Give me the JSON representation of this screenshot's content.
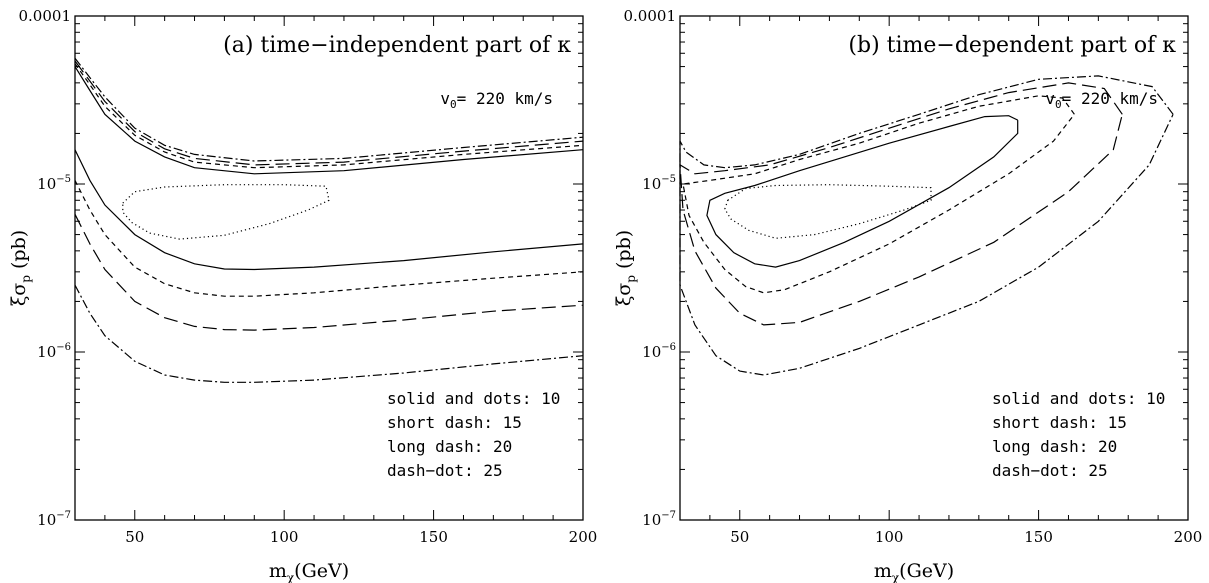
{
  "chart_data": [
    {
      "type": "line",
      "title": "(a) time−independent part of κ",
      "annotation": "v0= 220 km/s",
      "annotation_main": "v",
      "annotation_sub": "0",
      "annotation_rest": "= 220 km/s",
      "xlabel": "mχ(GeV)",
      "xlabel_main": "m",
      "xlabel_sub": "χ",
      "xlabel_rest": "(GeV)",
      "ylabel": "ξσp (pb)",
      "ylabel_main": "ξσ",
      "ylabel_sub": "p",
      "ylabel_rest": " (pb)",
      "xlim": [
        30,
        200
      ],
      "ylim": [
        1e-07,
        0.0001
      ],
      "yscale": "log",
      "x_ticks": [
        50,
        100,
        150,
        200
      ],
      "x_tick_labels": [
        "50",
        "100",
        "150",
        "200"
      ],
      "y_tick_labels": [
        {
          "value": 0.0001,
          "label": "0.0001"
        },
        {
          "value": 1e-05,
          "base": "10",
          "exp": "−5"
        },
        {
          "value": 1e-06,
          "base": "10",
          "exp": "−6"
        },
        {
          "value": 1e-07,
          "base": "10",
          "exp": "−7"
        }
      ],
      "legend_lines": [
        "solid and dots: 10",
        "short dash: 15",
        "long dash: 20",
        "dash−dot: 25"
      ],
      "legend_position": "bottom-right",
      "series": [
        {
          "style": "solid",
          "points": [
            [
              30,
              5e-05
            ],
            [
              35,
              3.6e-05
            ],
            [
              40,
              2.6e-05
            ],
            [
              50,
              1.8e-05
            ],
            [
              60,
              1.45e-05
            ],
            [
              70,
              1.25e-05
            ],
            [
              90,
              1.15e-05
            ],
            [
              120,
              1.2e-05
            ],
            [
              160,
              1.4e-05
            ],
            [
              200,
              1.6e-05
            ]
          ]
        },
        {
          "style": "short-dash",
          "points": [
            [
              30,
              5.2e-05
            ],
            [
              35,
              3.9e-05
            ],
            [
              40,
              2.9e-05
            ],
            [
              50,
              1.95e-05
            ],
            [
              60,
              1.55e-05
            ],
            [
              70,
              1.35e-05
            ],
            [
              90,
              1.25e-05
            ],
            [
              120,
              1.3e-05
            ],
            [
              160,
              1.5e-05
            ],
            [
              200,
              1.7e-05
            ]
          ]
        },
        {
          "style": "long-dash",
          "points": [
            [
              30,
              5.4e-05
            ],
            [
              35,
              4.1e-05
            ],
            [
              40,
              3.1e-05
            ],
            [
              50,
              2.05e-05
            ],
            [
              60,
              1.62e-05
            ],
            [
              70,
              1.42e-05
            ],
            [
              90,
              1.3e-05
            ],
            [
              120,
              1.35e-05
            ],
            [
              160,
              1.57e-05
            ],
            [
              200,
              1.8e-05
            ]
          ]
        },
        {
          "style": "dash-dot",
          "points": [
            [
              30,
              5.6e-05
            ],
            [
              35,
              4.3e-05
            ],
            [
              40,
              3.3e-05
            ],
            [
              50,
              2.15e-05
            ],
            [
              60,
              1.7e-05
            ],
            [
              70,
              1.5e-05
            ],
            [
              90,
              1.37e-05
            ],
            [
              120,
              1.42e-05
            ],
            [
              160,
              1.65e-05
            ],
            [
              200,
              1.9e-05
            ]
          ]
        },
        {
          "style": "solid",
          "points": [
            [
              30,
              1.6e-05
            ],
            [
              35,
              1.05e-05
            ],
            [
              40,
              7.5e-06
            ],
            [
              50,
              5e-06
            ],
            [
              60,
              3.9e-06
            ],
            [
              70,
              3.35e-06
            ],
            [
              80,
              3.12e-06
            ],
            [
              90,
              3.1e-06
            ],
            [
              110,
              3.2e-06
            ],
            [
              140,
              3.5e-06
            ],
            [
              170,
              3.95e-06
            ],
            [
              200,
              4.4e-06
            ]
          ]
        },
        {
          "style": "short-dash",
          "points": [
            [
              30,
              1.05e-05
            ],
            [
              35,
              7e-06
            ],
            [
              40,
              5e-06
            ],
            [
              50,
              3.2e-06
            ],
            [
              60,
              2.55e-06
            ],
            [
              70,
              2.25e-06
            ],
            [
              80,
              2.15e-06
            ],
            [
              90,
              2.15e-06
            ],
            [
              110,
              2.25e-06
            ],
            [
              140,
              2.5e-06
            ],
            [
              170,
              2.75e-06
            ],
            [
              200,
              3e-06
            ]
          ]
        },
        {
          "style": "long-dash",
          "points": [
            [
              30,
              6.6e-06
            ],
            [
              35,
              4.4e-06
            ],
            [
              40,
              3.1e-06
            ],
            [
              50,
              2e-06
            ],
            [
              60,
              1.6e-06
            ],
            [
              70,
              1.42e-06
            ],
            [
              80,
              1.36e-06
            ],
            [
              90,
              1.35e-06
            ],
            [
              110,
              1.4e-06
            ],
            [
              140,
              1.55e-06
            ],
            [
              170,
              1.75e-06
            ],
            [
              200,
              1.9e-06
            ]
          ]
        },
        {
          "style": "dash-dot",
          "points": [
            [
              30,
              2.5e-06
            ],
            [
              35,
              1.7e-06
            ],
            [
              40,
              1.25e-06
            ],
            [
              50,
              8.8e-07
            ],
            [
              60,
              7.3e-07
            ],
            [
              70,
              6.8e-07
            ],
            [
              80,
              6.6e-07
            ],
            [
              90,
              6.6e-07
            ],
            [
              110,
              6.8e-07
            ],
            [
              140,
              7.5e-07
            ],
            [
              170,
              8.5e-07
            ],
            [
              200,
              9.5e-07
            ]
          ]
        },
        {
          "style": "dotted",
          "closed": true,
          "points": [
            [
              46,
              7.7e-06
            ],
            [
              50,
              9e-06
            ],
            [
              60,
              9.6e-06
            ],
            [
              80,
              9.9e-06
            ],
            [
              100,
              9.9e-06
            ],
            [
              114,
              9.7e-06
            ],
            [
              115,
              8e-06
            ],
            [
              108,
              7e-06
            ],
            [
              95,
              5.8e-06
            ],
            [
              80,
              4.95e-06
            ],
            [
              65,
              4.7e-06
            ],
            [
              55,
              5.1e-06
            ],
            [
              49,
              5.9e-06
            ],
            [
              46,
              6.8e-06
            ]
          ]
        }
      ]
    },
    {
      "type": "line",
      "title": "(b) time−dependent part of κ",
      "annotation": "v0= 220 km/s",
      "annotation_main": "v",
      "annotation_sub": "0",
      "annotation_rest": "= 220 km/s",
      "xlabel": "mχ(GeV)",
      "xlabel_main": "m",
      "xlabel_sub": "χ",
      "xlabel_rest": "(GeV)",
      "ylabel": "ξσp (pb)",
      "ylabel_main": "ξσ",
      "ylabel_sub": "p",
      "ylabel_rest": " (pb)",
      "xlim": [
        30,
        200
      ],
      "ylim": [
        1e-07,
        0.0001
      ],
      "yscale": "log",
      "x_ticks": [
        50,
        100,
        150,
        200
      ],
      "x_tick_labels": [
        "50",
        "100",
        "150",
        "200"
      ],
      "y_tick_labels": [
        {
          "value": 0.0001,
          "label": "0.0001"
        },
        {
          "value": 1e-05,
          "base": "10",
          "exp": "−5"
        },
        {
          "value": 1e-06,
          "base": "10",
          "exp": "−6"
        },
        {
          "value": 1e-07,
          "base": "10",
          "exp": "−7"
        }
      ],
      "legend_lines": [
        "solid and dots: 10",
        "short dash: 15",
        "long dash: 20",
        "dash−dot: 25"
      ],
      "legend_position": "bottom-right",
      "series": [
        {
          "style": "solid",
          "points": [
            [
              143,
              2.4e-05
            ],
            [
              140,
              2.55e-05
            ],
            [
              132,
              2.52e-05
            ],
            [
              120,
              2.2e-05
            ],
            [
              100,
              1.75e-05
            ],
            [
              85,
              1.45e-05
            ],
            [
              70,
              1.2e-05
            ],
            [
              55,
              9.8e-06
            ],
            [
              45,
              8.8e-06
            ],
            [
              40,
              8e-06
            ],
            [
              39,
              6.5e-06
            ],
            [
              42,
              5e-06
            ],
            [
              48,
              3.9e-06
            ],
            [
              55,
              3.35e-06
            ],
            [
              62,
              3.2e-06
            ],
            [
              70,
              3.5e-06
            ],
            [
              85,
              4.5e-06
            ],
            [
              100,
              6e-06
            ],
            [
              120,
              9.5e-06
            ],
            [
              135,
              1.45e-05
            ],
            [
              143,
              2e-05
            ],
            [
              143,
              2.4e-05
            ]
          ]
        },
        {
          "style": "short-dash",
          "points": [
            [
              162,
              2.6e-05
            ],
            [
              158,
              3.25e-05
            ],
            [
              150,
              3.35e-05
            ],
            [
              130,
              2.9e-05
            ],
            [
              110,
              2.3e-05
            ],
            [
              90,
              1.75e-05
            ],
            [
              70,
              1.4e-05
            ],
            [
              55,
              1.15e-05
            ],
            [
              40,
              1.05e-05
            ],
            [
              31,
              1e-05
            ],
            [
              33,
              6.5e-06
            ],
            [
              38,
              4.5e-06
            ],
            [
              45,
              3.1e-06
            ],
            [
              52,
              2.45e-06
            ],
            [
              58,
              2.25e-06
            ],
            [
              65,
              2.35e-06
            ],
            [
              80,
              3e-06
            ],
            [
              100,
              4.4e-06
            ],
            [
              120,
              7e-06
            ],
            [
              140,
              1.15e-05
            ],
            [
              155,
              1.8e-05
            ],
            [
              162,
              2.6e-05
            ]
          ]
        },
        {
          "style": "long-dash",
          "points": [
            [
              178,
              2.6e-05
            ],
            [
              172,
              3.7e-05
            ],
            [
              160,
              4e-05
            ],
            [
              140,
              3.5e-05
            ],
            [
              120,
              2.8e-05
            ],
            [
              100,
              2.15e-05
            ],
            [
              80,
              1.65e-05
            ],
            [
              60,
              1.3e-05
            ],
            [
              45,
              1.2e-05
            ],
            [
              35,
              1.15e-05
            ],
            [
              30,
              1.3e-05
            ],
            [
              31,
              7e-06
            ],
            [
              35,
              4e-06
            ],
            [
              42,
              2.4e-06
            ],
            [
              50,
              1.7e-06
            ],
            [
              58,
              1.45e-06
            ],
            [
              70,
              1.5e-06
            ],
            [
              90,
              2e-06
            ],
            [
              110,
              2.8e-06
            ],
            [
              135,
              4.5e-06
            ],
            [
              160,
              9e-06
            ],
            [
              175,
              1.6e-05
            ],
            [
              178,
              2.6e-05
            ]
          ]
        },
        {
          "style": "dash-dot",
          "points": [
            [
              195,
              2.6e-05
            ],
            [
              188,
              3.8e-05
            ],
            [
              170,
              4.4e-05
            ],
            [
              150,
              4.2e-05
            ],
            [
              130,
              3.4e-05
            ],
            [
              110,
              2.6e-05
            ],
            [
              90,
              2e-05
            ],
            [
              70,
              1.5e-05
            ],
            [
              55,
              1.3e-05
            ],
            [
              45,
              1.25e-05
            ],
            [
              38,
              1.3e-05
            ],
            [
              32,
              1.55e-05
            ],
            [
              30,
              1.8e-05
            ],
            [
              30,
              2.5e-06
            ],
            [
              35,
              1.45e-06
            ],
            [
              42,
              9.5e-07
            ],
            [
              50,
              7.7e-07
            ],
            [
              58,
              7.3e-07
            ],
            [
              70,
              8e-07
            ],
            [
              90,
              1.05e-06
            ],
            [
              110,
              1.45e-06
            ],
            [
              130,
              2e-06
            ],
            [
              150,
              3.2e-06
            ],
            [
              170,
              6e-06
            ],
            [
              187,
              1.3e-05
            ],
            [
              195,
              2.6e-05
            ]
          ]
        },
        {
          "style": "dotted",
          "closed": true,
          "points": [
            [
              46,
              8e-06
            ],
            [
              52,
              9.4e-06
            ],
            [
              62,
              9.8e-06
            ],
            [
              80,
              9.9e-06
            ],
            [
              100,
              9.7e-06
            ],
            [
              114,
              9.5e-06
            ],
            [
              114,
              8e-06
            ],
            [
              105,
              7e-06
            ],
            [
              90,
              5.8e-06
            ],
            [
              75,
              5e-06
            ],
            [
              62,
              4.75e-06
            ],
            [
              53,
              5.3e-06
            ],
            [
              47,
              6.2e-06
            ],
            [
              45,
              7.1e-06
            ]
          ]
        }
      ]
    }
  ]
}
